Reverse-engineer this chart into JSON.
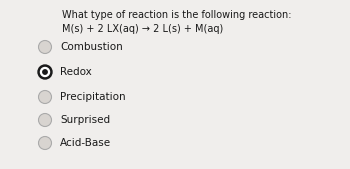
{
  "question_line1": "What type of reaction is the following reaction:",
  "question_line2": "M(s) + 2 LX(aq) → 2 L(s) + M(aq)",
  "options": [
    "Combustion",
    "Redox",
    "Precipitation",
    "Surprised",
    "Acid-Base"
  ],
  "selected_index": 1,
  "background_color": "#f0eeec",
  "text_color": "#1a1a1a",
  "question_fontsize": 7.0,
  "option_fontsize": 7.5,
  "selected_fill": "#1a1a1a",
  "unselected_edge": "#aaaaaa",
  "unselected_fill": "#d8d4d0"
}
